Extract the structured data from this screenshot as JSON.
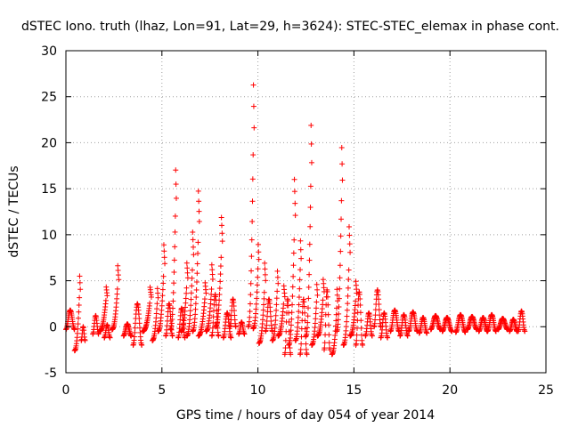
{
  "chart_data": {
    "type": "scatter",
    "title": "dSTEC Iono. truth (lhaz, Lon=91, Lat=29, h=3624): STEC-STEC_elemax in phase cont.",
    "xlabel": "GPS time / hours of day 054 of year 2014",
    "ylabel": "dSTEC  / TECUs",
    "xlim": [
      0,
      25
    ],
    "ylim": [
      -5,
      30
    ],
    "xticks": [
      0,
      5,
      10,
      15,
      20,
      25
    ],
    "yticks": [
      -5,
      0,
      5,
      10,
      15,
      20,
      25,
      30
    ],
    "grid": true,
    "marker": "+",
    "marker_color": "#ff0000",
    "series": [
      {
        "name": "dSTEC",
        "arcs": [
          {
            "x": [
              0.0,
              0.45
            ],
            "y": [
              -0.3,
              1.8
            ]
          },
          {
            "x": [
              0.45,
              0.75
            ],
            "y": [
              -2.6,
              6.0
            ]
          },
          {
            "x": [
              0.8,
              1.0
            ],
            "y": [
              -1.5,
              0.0
            ]
          },
          {
            "x": [
              1.4,
              1.7
            ],
            "y": [
              -0.8,
              1.2
            ]
          },
          {
            "x": [
              1.75,
              2.15
            ],
            "y": [
              -0.5,
              4.5
            ]
          },
          {
            "x": [
              2.0,
              2.3
            ],
            "y": [
              -1.2,
              0.2
            ]
          },
          {
            "x": [
              2.4,
              2.75
            ],
            "y": [
              -0.3,
              6.7
            ]
          },
          {
            "x": [
              3.0,
              3.4
            ],
            "y": [
              -1.0,
              0.3
            ]
          },
          {
            "x": [
              3.5,
              3.95
            ],
            "y": [
              -2.0,
              2.5
            ]
          },
          {
            "x": [
              4.0,
              4.45
            ],
            "y": [
              -0.5,
              4.3
            ]
          },
          {
            "x": [
              4.5,
              4.8
            ],
            "y": [
              -1.5,
              4.5
            ]
          },
          {
            "x": [
              4.8,
              5.15
            ],
            "y": [
              -0.5,
              9.0
            ]
          },
          {
            "x": [
              5.2,
              5.55
            ],
            "y": [
              -1.0,
              2.5
            ]
          },
          {
            "x": [
              5.45,
              5.75
            ],
            "y": [
              -0.3,
              18.1
            ]
          },
          {
            "x": [
              5.85,
              6.2
            ],
            "y": [
              -1.2,
              2.0
            ]
          },
          {
            "x": [
              6.0,
              6.35
            ],
            "y": [
              -0.5,
              7.0
            ]
          },
          {
            "x": [
              6.3,
              6.65
            ],
            "y": [
              -1.0,
              10.4
            ]
          },
          {
            "x": [
              6.6,
              6.95
            ],
            "y": [
              -0.5,
              14.9
            ]
          },
          {
            "x": [
              6.9,
              7.3
            ],
            "y": [
              -1.0,
              5.0
            ]
          },
          {
            "x": [
              7.3,
              7.65
            ],
            "y": [
              -0.5,
              6.8
            ]
          },
          {
            "x": [
              7.6,
              7.95
            ],
            "y": [
              -1.0,
              3.5
            ]
          },
          {
            "x": [
              7.8,
              8.15
            ],
            "y": [
              0.0,
              12.0
            ]
          },
          {
            "x": [
              8.2,
              8.6
            ],
            "y": [
              -1.2,
              1.5
            ]
          },
          {
            "x": [
              8.55,
              8.85
            ],
            "y": [
              0.0,
              3.0
            ]
          },
          {
            "x": [
              9.0,
              9.3
            ],
            "y": [
              -0.8,
              0.5
            ]
          },
          {
            "x": [
              9.5,
              9.8
            ],
            "y": [
              0.0,
              27.9
            ]
          },
          {
            "x": [
              9.75,
              10.05
            ],
            "y": [
              -0.2,
              9.5
            ]
          },
          {
            "x": [
              10.05,
              10.4
            ],
            "y": [
              -1.8,
              7.0
            ]
          },
          {
            "x": [
              10.4,
              10.75
            ],
            "y": [
              -0.5,
              3.0
            ]
          },
          {
            "x": [
              10.75,
              11.05
            ],
            "y": [
              -1.5,
              6.5
            ]
          },
          {
            "x": [
              11.05,
              11.4
            ],
            "y": [
              -1.0,
              4.5
            ]
          },
          {
            "x": [
              11.4,
              11.7
            ],
            "y": [
              -3.0,
              3.0
            ]
          },
          {
            "x": [
              11.6,
              11.95
            ],
            "y": [
              -2.0,
              16.2
            ]
          },
          {
            "x": [
              11.95,
              12.25
            ],
            "y": [
              -1.5,
              10.0
            ]
          },
          {
            "x": [
              12.2,
              12.55
            ],
            "y": [
              -3.0,
              3.0
            ]
          },
          {
            "x": [
              12.5,
              12.8
            ],
            "y": [
              -1.0,
              23.3
            ]
          },
          {
            "x": [
              12.8,
              13.1
            ],
            "y": [
              -2.0,
              5.0
            ]
          },
          {
            "x": [
              13.1,
              13.45
            ],
            "y": [
              -1.0,
              5.2
            ]
          },
          {
            "x": [
              13.45,
              13.75
            ],
            "y": [
              -2.5,
              4.0
            ]
          },
          {
            "x": [
              13.85,
              14.15
            ],
            "y": [
              -3.0,
              4.5
            ]
          },
          {
            "x": [
              14.1,
              14.4
            ],
            "y": [
              -0.5,
              20.7
            ]
          },
          {
            "x": [
              14.45,
              14.8
            ],
            "y": [
              -2.0,
              11.0
            ]
          },
          {
            "x": [
              14.8,
              15.15
            ],
            "y": [
              -1.0,
              5.0
            ]
          },
          {
            "x": [
              15.1,
              15.45
            ],
            "y": [
              -2.0,
              3.8
            ]
          },
          {
            "x": [
              15.6,
              15.95
            ],
            "y": [
              -1.0,
              1.5
            ]
          },
          {
            "x": [
              16.05,
              16.4
            ],
            "y": [
              0.0,
              4.0
            ]
          },
          {
            "x": [
              16.4,
              16.75
            ],
            "y": [
              -1.2,
              1.5
            ]
          },
          {
            "x": [
              16.9,
              17.35
            ],
            "y": [
              -0.5,
              1.8
            ]
          },
          {
            "x": [
              17.4,
              17.8
            ],
            "y": [
              -1.0,
              1.3
            ]
          },
          {
            "x": [
              17.85,
              18.3
            ],
            "y": [
              -0.5,
              1.6
            ]
          },
          {
            "x": [
              18.4,
              18.8
            ],
            "y": [
              -0.7,
              1.0
            ]
          },
          {
            "x": [
              19.0,
              19.5
            ],
            "y": [
              -0.3,
              1.2
            ]
          },
          {
            "x": [
              19.6,
              20.1
            ],
            "y": [
              -0.5,
              1.0
            ]
          },
          {
            "x": [
              20.3,
              20.8
            ],
            "y": [
              -0.6,
              1.3
            ]
          },
          {
            "x": [
              20.9,
              21.4
            ],
            "y": [
              -0.3,
              1.1
            ]
          },
          {
            "x": [
              21.5,
              21.95
            ],
            "y": [
              -0.5,
              1.0
            ]
          },
          {
            "x": [
              21.95,
              22.4
            ],
            "y": [
              -0.5,
              1.3
            ]
          },
          {
            "x": [
              22.5,
              23.0
            ],
            "y": [
              -0.3,
              0.9
            ]
          },
          {
            "x": [
              23.1,
              23.5
            ],
            "y": [
              -0.5,
              0.8
            ]
          },
          {
            "x": [
              23.55,
              23.9
            ],
            "y": [
              -0.5,
              1.7
            ]
          }
        ]
      }
    ]
  }
}
